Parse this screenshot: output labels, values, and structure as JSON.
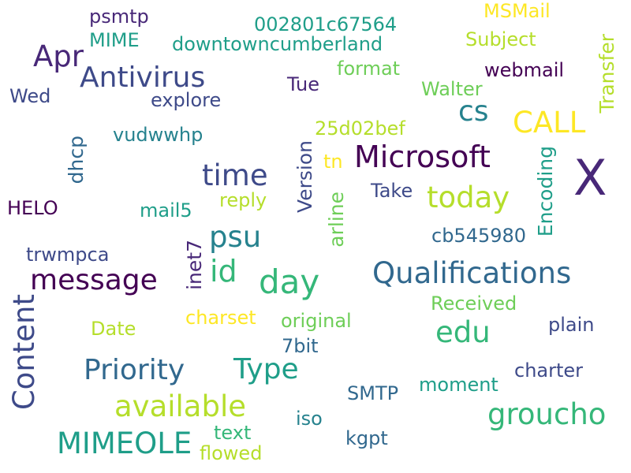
{
  "palette": {
    "background": "#ffffff",
    "dark_purple": "#440154",
    "indigo": "#482878",
    "blue_violet": "#3e4a89",
    "slate_blue": "#31688e",
    "teal": "#26828e",
    "sea_green": "#1f9e89",
    "green": "#35b779",
    "light_green": "#6ece58",
    "lime": "#b5de2b",
    "yellow": "#fde725"
  },
  "words": {
    "x": "X",
    "microsoft": "Microsoft",
    "qualifications": "Qualifications",
    "antivirus": "Antivirus",
    "content": "Content",
    "message": "message",
    "priority": "Priority",
    "type": "Type",
    "available": "available",
    "groucho": "groucho",
    "mimeole": "MIMEOLE",
    "day": "day",
    "today": "today",
    "time": "time",
    "id": "id",
    "psu": "psu",
    "edu": "edu",
    "call": "CALL",
    "apr": "Apr",
    "cs": "cs",
    "transfer": "Transfer",
    "encoding": "Encoding",
    "version": "Version",
    "arline": "arline",
    "inet7": "inet7",
    "dhcp": "dhcp",
    "psmtp": "psmtp",
    "mime": "MIME",
    "hash1": "002801c67564",
    "downtowncumberland": "downtowncumberland",
    "msmail": "MSMail",
    "subject": "Subject",
    "format": "format",
    "webmail": "webmail",
    "wed": "Wed",
    "explore": "explore",
    "tue": "Tue",
    "walter": "Walter",
    "hash2": "25d02bef",
    "vudwwhp": "vudwwhp",
    "tn": "tn",
    "take": "Take",
    "helo": "HELO",
    "mail5": "mail5",
    "reply": "reply",
    "hash3": "cb545980",
    "trwmpca": "trwmpca",
    "received": "Received",
    "date": "Date",
    "charset": "charset",
    "original": "original",
    "plain": "plain",
    "bit7": "7bit",
    "charter": "charter",
    "smtp": "SMTP",
    "moment": "moment",
    "iso": "iso",
    "text": "text",
    "kgpt": "kgpt",
    "flowed": "flowed"
  }
}
